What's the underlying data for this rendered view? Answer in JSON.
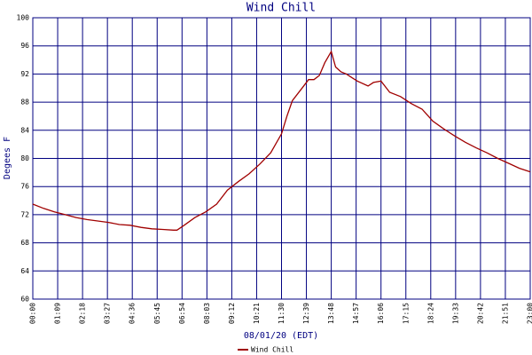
{
  "chart_data": {
    "type": "line",
    "title": "Wind Chill",
    "xlabel": "08/01/20 (EDT)",
    "ylabel": "Degees F",
    "x": [
      "00:00",
      "00:30",
      "01:00",
      "01:30",
      "02:00",
      "02:30",
      "03:00",
      "03:30",
      "04:00",
      "04:30",
      "05:00",
      "05:30",
      "06:00",
      "06:30",
      "06:40",
      "07:00",
      "07:30",
      "08:00",
      "08:30",
      "09:00",
      "09:30",
      "10:00",
      "10:30",
      "11:00",
      "11:30",
      "11:45",
      "12:00",
      "12:30",
      "12:45",
      "13:00",
      "13:15",
      "13:30",
      "13:48",
      "14:00",
      "14:15",
      "14:30",
      "14:45",
      "15:00",
      "15:30",
      "15:45",
      "16:06",
      "16:30",
      "17:00",
      "17:30",
      "18:00",
      "18:30",
      "19:00",
      "19:30",
      "20:00",
      "20:30",
      "21:00",
      "21:30",
      "22:00",
      "22:30",
      "23:00"
    ],
    "series": [
      {
        "name": "Wind Chill",
        "color": "#a00000",
        "values": [
          73.5,
          72.9,
          72.4,
          72.0,
          71.6,
          71.3,
          71.1,
          70.9,
          70.6,
          70.5,
          70.2,
          70.0,
          69.9,
          69.8,
          69.8,
          70.5,
          71.6,
          72.4,
          73.5,
          75.5,
          76.7,
          77.8,
          79.2,
          80.8,
          83.5,
          86.0,
          88.2,
          90.2,
          91.2,
          91.2,
          91.8,
          93.6,
          95.2,
          93.0,
          92.3,
          92.0,
          91.5,
          91.0,
          90.3,
          90.8,
          91.0,
          89.4,
          88.8,
          87.8,
          87.0,
          85.3,
          84.2,
          83.2,
          82.3,
          81.5,
          80.8,
          80.0,
          79.3,
          78.6,
          78.1
        ]
      }
    ],
    "xlim": [
      "00:00",
      "23:00"
    ],
    "xticks": [
      "00:00",
      "01:09",
      "02:18",
      "03:27",
      "04:36",
      "05:45",
      "06:54",
      "08:03",
      "09:12",
      "10:21",
      "11:30",
      "12:39",
      "13:48",
      "14:57",
      "16:06",
      "17:15",
      "18:24",
      "19:33",
      "20:42",
      "21:51",
      "23:00"
    ],
    "ylim": [
      60,
      100
    ],
    "yticks": [
      60,
      64,
      68,
      72,
      76,
      80,
      84,
      88,
      92,
      96,
      100
    ],
    "grid": true
  }
}
